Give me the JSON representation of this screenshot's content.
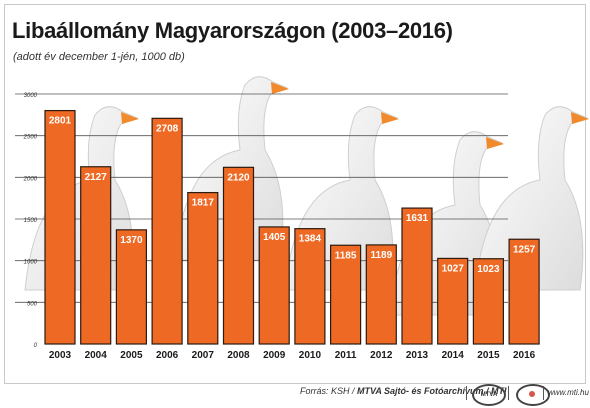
{
  "header": {
    "title": "Libaállomány Magyarországon (2003–2016)",
    "subtitle": "(adott év december 1-jén, 1000 db)"
  },
  "footer": {
    "source_prefix": "Forrás: KSH /",
    "source_org": "MTVA Sajtó- és Fotóarchívum / MTI",
    "logo_mtva": "MTVA",
    "site": "www.mti.hu"
  },
  "colors": {
    "bar_fill": "#ee6a24",
    "bar_border": "#2b1a10",
    "gridline": "#555555",
    "background_illustration": "white geese"
  },
  "chart_data": {
    "type": "bar",
    "title": "Libaállomány Magyarországon (2003–2016)",
    "subtitle": "(adott év december 1-jén, 1000 db)",
    "categories": [
      "2003",
      "2004",
      "2005",
      "2006",
      "2007",
      "2008",
      "2009",
      "2010",
      "2011",
      "2012",
      "2013",
      "2014",
      "2015",
      "2016"
    ],
    "values": [
      2801,
      2127,
      1370,
      2708,
      1817,
      2120,
      1405,
      1384,
      1185,
      1189,
      1631,
      1027,
      1023,
      1257
    ],
    "y_ticks": [
      0,
      500,
      1000,
      1500,
      2000,
      2500,
      3000
    ],
    "ylim": [
      0,
      3000
    ],
    "xlabel": "",
    "ylabel": "",
    "grid": true,
    "legend": "none",
    "data_labels": true
  }
}
